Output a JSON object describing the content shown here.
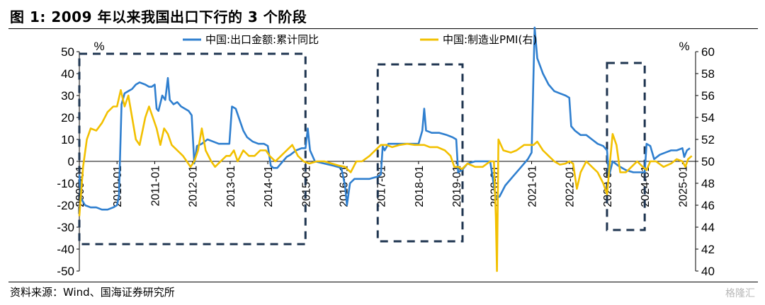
{
  "header": {
    "title": "图 1:  2009 年以来我国出口下行的 3 个阶段"
  },
  "footer": {
    "source": "资料来源：Wind、国海证券研究所",
    "watermark": "格隆汇"
  },
  "chart_data": {
    "type": "line",
    "left_unit": "%",
    "right_unit": "%",
    "ylim_left": [
      -50,
      50
    ],
    "ylim_right": [
      40,
      60
    ],
    "yticks_left": [
      "50",
      "40",
      "30",
      "20",
      "10",
      "0",
      "-10",
      "-20",
      "-30",
      "-40",
      "-50"
    ],
    "yticks_right": [
      "60",
      "58",
      "56",
      "54",
      "52",
      "50",
      "48",
      "46",
      "44",
      "42",
      "40"
    ],
    "xticks": [
      "2009-01",
      "2010-01",
      "2011-01",
      "2012-01",
      "2013-01",
      "2014-01",
      "2015-01",
      "2016-01",
      "2017-01",
      "2018-01",
      "2019-01",
      "2020-01",
      "2021-01",
      "2022-01",
      "2023-01",
      "2024-01",
      "2025-01"
    ],
    "highlight_boxes": [
      {
        "from": "2009-01",
        "to": "2015-01"
      },
      {
        "from": "2016-12",
        "to": "2019-03"
      },
      {
        "from": "2023-01",
        "to": "2024-01"
      }
    ],
    "series": [
      {
        "name": "中国:出口金额:累计同比",
        "axis": "left",
        "color": "#2f7fcf",
        "points": [
          [
            2009.0,
            -6
          ],
          [
            2009.05,
            -17
          ],
          [
            2009.15,
            -20
          ],
          [
            2009.3,
            -21
          ],
          [
            2009.45,
            -21
          ],
          [
            2009.6,
            -22
          ],
          [
            2009.75,
            -22
          ],
          [
            2009.9,
            -21
          ],
          [
            2010.0,
            -20
          ],
          [
            2010.05,
            -16
          ],
          [
            2010.12,
            26
          ],
          [
            2010.2,
            31
          ],
          [
            2010.3,
            32
          ],
          [
            2010.4,
            33
          ],
          [
            2010.5,
            35
          ],
          [
            2010.6,
            36
          ],
          [
            2010.75,
            35
          ],
          [
            2010.85,
            34
          ],
          [
            2010.92,
            34
          ],
          [
            2011.0,
            35
          ],
          [
            2011.05,
            24
          ],
          [
            2011.1,
            23
          ],
          [
            2011.2,
            30
          ],
          [
            2011.28,
            28
          ],
          [
            2011.35,
            38
          ],
          [
            2011.4,
            28
          ],
          [
            2011.5,
            26
          ],
          [
            2011.6,
            27
          ],
          [
            2011.7,
            25
          ],
          [
            2011.8,
            24
          ],
          [
            2011.9,
            23
          ],
          [
            2011.98,
            21
          ],
          [
            2012.05,
            -1
          ],
          [
            2012.12,
            7
          ],
          [
            2012.25,
            8
          ],
          [
            2012.4,
            10
          ],
          [
            2012.55,
            9
          ],
          [
            2012.7,
            8
          ],
          [
            2012.85,
            8
          ],
          [
            2012.98,
            8
          ],
          [
            2013.05,
            25
          ],
          [
            2013.15,
            24
          ],
          [
            2013.25,
            19
          ],
          [
            2013.35,
            14
          ],
          [
            2013.45,
            11
          ],
          [
            2013.6,
            9
          ],
          [
            2013.75,
            8
          ],
          [
            2013.9,
            8
          ],
          [
            2014.0,
            7
          ],
          [
            2014.08,
            -2
          ],
          [
            2014.15,
            -3
          ],
          [
            2014.25,
            -3
          ],
          [
            2014.4,
            0
          ],
          [
            2014.5,
            2
          ],
          [
            2014.6,
            3
          ],
          [
            2014.75,
            5
          ],
          [
            2014.9,
            6
          ],
          [
            2015.0,
            6
          ],
          [
            2015.06,
            15
          ],
          [
            2015.12,
            5
          ],
          [
            2015.25,
            0
          ],
          [
            2015.5,
            -1
          ],
          [
            2015.75,
            -2
          ],
          [
            2015.95,
            -3
          ],
          [
            2016.05,
            -11
          ],
          [
            2016.1,
            -20
          ],
          [
            2016.18,
            -10
          ],
          [
            2016.3,
            -8
          ],
          [
            2016.5,
            -8
          ],
          [
            2016.7,
            -8
          ],
          [
            2016.9,
            -7
          ],
          [
            2017.0,
            -6
          ],
          [
            2017.05,
            7
          ],
          [
            2017.1,
            5
          ],
          [
            2017.2,
            8
          ],
          [
            2017.4,
            8
          ],
          [
            2017.6,
            8
          ],
          [
            2017.8,
            8
          ],
          [
            2018.0,
            8
          ],
          [
            2018.1,
            14
          ],
          [
            2018.15,
            24
          ],
          [
            2018.2,
            14
          ],
          [
            2018.35,
            13
          ],
          [
            2018.55,
            13
          ],
          [
            2018.75,
            12
          ],
          [
            2018.9,
            11
          ],
          [
            2019.0,
            10
          ],
          [
            2019.05,
            -5
          ],
          [
            2019.15,
            -4
          ],
          [
            2019.3,
            -1
          ],
          [
            2019.5,
            0
          ],
          [
            2019.7,
            0
          ],
          [
            2019.9,
            0
          ],
          [
            2020.05,
            -17
          ],
          [
            2020.15,
            -16
          ],
          [
            2020.3,
            -11
          ],
          [
            2020.5,
            -7
          ],
          [
            2020.7,
            -3
          ],
          [
            2020.9,
            1
          ],
          [
            2021.0,
            4
          ],
          [
            2021.08,
            61
          ],
          [
            2021.15,
            47
          ],
          [
            2021.3,
            40
          ],
          [
            2021.45,
            35
          ],
          [
            2021.6,
            32
          ],
          [
            2021.75,
            31
          ],
          [
            2021.9,
            30
          ],
          [
            2022.0,
            29
          ],
          [
            2022.05,
            16
          ],
          [
            2022.15,
            14
          ],
          [
            2022.3,
            12
          ],
          [
            2022.45,
            12
          ],
          [
            2022.6,
            10
          ],
          [
            2022.75,
            8
          ],
          [
            2022.9,
            7
          ],
          [
            2023.0,
            5
          ],
          [
            2023.05,
            -7
          ],
          [
            2023.15,
            0
          ],
          [
            2023.3,
            -2
          ],
          [
            2023.5,
            -4
          ],
          [
            2023.7,
            -5
          ],
          [
            2023.9,
            -5
          ],
          [
            2024.0,
            -5
          ],
          [
            2024.05,
            8
          ],
          [
            2024.15,
            7
          ],
          [
            2024.25,
            1
          ],
          [
            2024.4,
            3
          ],
          [
            2024.55,
            4
          ],
          [
            2024.7,
            5
          ],
          [
            2024.85,
            5
          ],
          [
            2025.0,
            6
          ],
          [
            2025.05,
            2
          ],
          [
            2025.12,
            5
          ],
          [
            2025.2,
            6
          ]
        ]
      },
      {
        "name": "中国:制造业PMI(右)",
        "axis": "right",
        "color": "#f2c000",
        "points": [
          [
            2009.0,
            45
          ],
          [
            2009.1,
            49.5
          ],
          [
            2009.2,
            52
          ],
          [
            2009.3,
            53
          ],
          [
            2009.45,
            52.8
          ],
          [
            2009.6,
            53.5
          ],
          [
            2009.75,
            54.5
          ],
          [
            2009.9,
            55
          ],
          [
            2010.0,
            55
          ],
          [
            2010.1,
            56.5
          ],
          [
            2010.2,
            55
          ],
          [
            2010.3,
            56
          ],
          [
            2010.4,
            54
          ],
          [
            2010.5,
            52
          ],
          [
            2010.6,
            51.5
          ],
          [
            2010.75,
            54
          ],
          [
            2010.85,
            55
          ],
          [
            2010.95,
            54
          ],
          [
            2011.05,
            53
          ],
          [
            2011.15,
            51.5
          ],
          [
            2011.25,
            53
          ],
          [
            2011.35,
            52.5
          ],
          [
            2011.45,
            51.5
          ],
          [
            2011.6,
            51
          ],
          [
            2011.75,
            50.5
          ],
          [
            2011.85,
            50
          ],
          [
            2011.95,
            49.5
          ],
          [
            2012.05,
            50
          ],
          [
            2012.15,
            51
          ],
          [
            2012.25,
            53
          ],
          [
            2012.35,
            51
          ],
          [
            2012.5,
            50
          ],
          [
            2012.6,
            49.5
          ],
          [
            2012.75,
            50
          ],
          [
            2012.9,
            50.5
          ],
          [
            2013.0,
            50.5
          ],
          [
            2013.1,
            51
          ],
          [
            2013.2,
            50
          ],
          [
            2013.35,
            51
          ],
          [
            2013.5,
            50.5
          ],
          [
            2013.65,
            50.5
          ],
          [
            2013.8,
            51
          ],
          [
            2013.95,
            51
          ],
          [
            2014.05,
            50.5
          ],
          [
            2014.2,
            50
          ],
          [
            2014.35,
            50.5
          ],
          [
            2014.5,
            51
          ],
          [
            2014.65,
            51.5
          ],
          [
            2014.8,
            50.5
          ],
          [
            2014.95,
            50
          ],
          [
            2015.1,
            49.8
          ],
          [
            2015.3,
            50
          ],
          [
            2015.5,
            50
          ],
          [
            2015.7,
            49.8
          ],
          [
            2015.9,
            49.6
          ],
          [
            2016.05,
            49.5
          ],
          [
            2016.2,
            49
          ],
          [
            2016.35,
            50
          ],
          [
            2016.5,
            50
          ],
          [
            2016.7,
            50.5
          ],
          [
            2016.85,
            51
          ],
          [
            2017.0,
            51.5
          ],
          [
            2017.15,
            51.5
          ],
          [
            2017.3,
            51.3
          ],
          [
            2017.5,
            51.5
          ],
          [
            2017.7,
            51.6
          ],
          [
            2017.9,
            51.5
          ],
          [
            2018.0,
            51.5
          ],
          [
            2018.15,
            51.5
          ],
          [
            2018.3,
            51.3
          ],
          [
            2018.5,
            51.3
          ],
          [
            2018.7,
            51
          ],
          [
            2018.85,
            50.5
          ],
          [
            2018.95,
            49.5
          ],
          [
            2019.05,
            49.5
          ],
          [
            2019.15,
            49.3
          ],
          [
            2019.3,
            49.8
          ],
          [
            2019.5,
            49.5
          ],
          [
            2019.7,
            49.5
          ],
          [
            2019.9,
            50
          ],
          [
            2020.0,
            50
          ],
          [
            2020.05,
            45
          ],
          [
            2020.08,
            40
          ],
          [
            2020.12,
            52
          ],
          [
            2020.25,
            51
          ],
          [
            2020.45,
            50.8
          ],
          [
            2020.6,
            51
          ],
          [
            2020.8,
            51.5
          ],
          [
            2020.95,
            51.5
          ],
          [
            2021.05,
            51.5
          ],
          [
            2021.15,
            51.8
          ],
          [
            2021.3,
            51
          ],
          [
            2021.45,
            50.5
          ],
          [
            2021.6,
            50
          ],
          [
            2021.75,
            49.7
          ],
          [
            2021.9,
            49.8
          ],
          [
            2022.0,
            50
          ],
          [
            2022.1,
            49.8
          ],
          [
            2022.2,
            47.5
          ],
          [
            2022.3,
            49
          ],
          [
            2022.45,
            50
          ],
          [
            2022.6,
            49.5
          ],
          [
            2022.75,
            49
          ],
          [
            2022.9,
            48
          ],
          [
            2023.0,
            47
          ],
          [
            2023.08,
            50
          ],
          [
            2023.15,
            52.5
          ],
          [
            2023.25,
            51.5
          ],
          [
            2023.35,
            49
          ],
          [
            2023.5,
            49
          ],
          [
            2023.65,
            49.5
          ],
          [
            2023.8,
            50
          ],
          [
            2023.95,
            49.5
          ],
          [
            2024.05,
            49.2
          ],
          [
            2024.15,
            50
          ],
          [
            2024.3,
            50
          ],
          [
            2024.5,
            49.5
          ],
          [
            2024.7,
            49.8
          ],
          [
            2024.85,
            50.2
          ],
          [
            2025.0,
            50
          ],
          [
            2025.08,
            49.5
          ],
          [
            2025.15,
            50.2
          ],
          [
            2025.25,
            50.5
          ]
        ]
      }
    ]
  }
}
